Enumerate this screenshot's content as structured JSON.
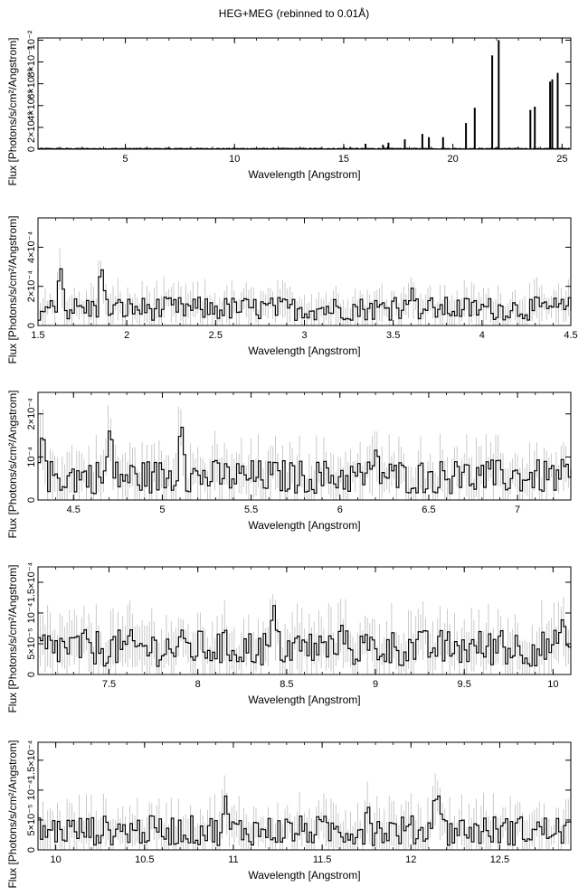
{
  "title": "HEG+MEG (rebinned to 0.01Å)",
  "chart_data": [
    {
      "type": "line",
      "xlabel": "Wavelength [Angstrom]",
      "ylabel": "Flux [Photons/s/cm²/Angstrom]",
      "xlim": [
        1.0,
        25.4
      ],
      "ylim": [
        0,
        0.0102
      ],
      "xticks": [
        5,
        10,
        15,
        20,
        25
      ],
      "xtick_labels": [
        "5",
        "10",
        "15",
        "20",
        "25"
      ],
      "yticks": [
        0,
        0.002,
        0.004,
        0.006,
        0.008,
        0.01
      ],
      "ytick_labels": [
        "0",
        "2×10⁻³",
        "4×10⁻³",
        "6×10⁻³",
        "8×10⁻³",
        "10⁻²"
      ],
      "baseline": 2e-05,
      "lines": [
        {
          "x": 15.0,
          "y": 0.0002
        },
        {
          "x": 15.3,
          "y": 0.0002
        },
        {
          "x": 16.0,
          "y": 0.0005
        },
        {
          "x": 16.8,
          "y": 0.0004
        },
        {
          "x": 17.05,
          "y": 0.0006
        },
        {
          "x": 17.8,
          "y": 0.0009
        },
        {
          "x": 18.6,
          "y": 0.0014
        },
        {
          "x": 18.9,
          "y": 0.0011
        },
        {
          "x": 19.55,
          "y": 0.0011
        },
        {
          "x": 20.6,
          "y": 0.0024
        },
        {
          "x": 21.0,
          "y": 0.0038
        },
        {
          "x": 21.8,
          "y": 0.0086
        },
        {
          "x": 22.1,
          "y": 0.01
        },
        {
          "x": 23.55,
          "y": 0.0036
        },
        {
          "x": 23.75,
          "y": 0.0039
        },
        {
          "x": 24.45,
          "y": 0.0062
        },
        {
          "x": 24.55,
          "y": 0.0064
        },
        {
          "x": 24.8,
          "y": 0.007
        }
      ]
    },
    {
      "type": "line",
      "xlabel": "Wavelength [Angstrom]",
      "ylabel": "Flux [Photons/s/cm²/Angstrom]",
      "xlim": [
        1.5,
        4.5
      ],
      "ylim": [
        0,
        0.00055
      ],
      "xticks": [
        1.5,
        2,
        2.5,
        3,
        3.5,
        4,
        4.5
      ],
      "xtick_labels": [
        "1.5",
        "2",
        "2.5",
        "3",
        "3.5",
        "4",
        "4.5"
      ],
      "yticks": [
        0,
        0.0002,
        0.0004
      ],
      "ytick_labels": [
        "0",
        "2×10⁻⁴",
        "4×10⁻⁴"
      ],
      "series_level": 8e-05,
      "noise": 6e-05,
      "features": [
        {
          "x": 1.62,
          "y": 0.00031
        },
        {
          "x": 1.85,
          "y": 0.00032
        },
        {
          "x": 3.5,
          "y": 0.00016
        },
        {
          "x": 3.6,
          "y": 0.00019
        }
      ]
    },
    {
      "type": "line",
      "xlabel": "Wavelength [Angstrom]",
      "ylabel": "Flux [Photons/s/cm²/Angstrom]",
      "xlim": [
        4.3,
        7.3
      ],
      "ylim": [
        0,
        0.00025
      ],
      "xticks": [
        4.5,
        5,
        5.5,
        6,
        6.5,
        7
      ],
      "xtick_labels": [
        "4.5",
        "5",
        "5.5",
        "6",
        "6.5",
        "7"
      ],
      "yticks": [
        0,
        0.0001,
        0.0002
      ],
      "ytick_labels": [
        "0",
        "10⁻⁴",
        "2×10⁻⁴"
      ],
      "series_level": 5e-05,
      "noise": 4e-05,
      "features": [
        {
          "x": 4.32,
          "y": 0.00017
        },
        {
          "x": 4.7,
          "y": 0.00018
        },
        {
          "x": 5.1,
          "y": 0.00019
        },
        {
          "x": 6.2,
          "y": 0.00013
        },
        {
          "x": 6.65,
          "y": 0.0001
        }
      ]
    },
    {
      "type": "line",
      "xlabel": "Wavelength [Angstrom]",
      "ylabel": "Flux [Photons/s/cm²/Angstrom]",
      "xlim": [
        7.1,
        10.1
      ],
      "ylim": [
        0,
        0.000175
      ],
      "xticks": [
        7.5,
        8,
        8.5,
        9,
        9.5,
        10
      ],
      "xtick_labels": [
        "7.5",
        "8",
        "8.5",
        "9",
        "9.5",
        "10"
      ],
      "yticks": [
        0,
        5e-05,
        0.0001,
        0.00015
      ],
      "ytick_labels": [
        "0",
        "5×10⁻⁵",
        "10⁻⁴",
        "1.5×10⁻⁴"
      ],
      "series_level": 4e-05,
      "noise": 3e-05,
      "features": [
        {
          "x": 8.42,
          "y": 0.00012
        },
        {
          "x": 8.8,
          "y": 9e-05
        },
        {
          "x": 9.7,
          "y": 8e-05
        },
        {
          "x": 10.05,
          "y": 0.0001
        }
      ]
    },
    {
      "type": "line",
      "xlabel": "Wavelength [Angstrom]",
      "ylabel": "Flux [Photons/s/cm²/Angstrom]",
      "xlim": [
        9.9,
        12.9
      ],
      "ylim": [
        0,
        0.00018
      ],
      "xticks": [
        10,
        10.5,
        11,
        11.5,
        12,
        12.5
      ],
      "xtick_labels": [
        "10",
        "10.5",
        "11",
        "11.5",
        "12",
        "12.5"
      ],
      "yticks": [
        0,
        5e-05,
        0.0001,
        0.00015
      ],
      "ytick_labels": [
        "0",
        "5×10⁻⁵",
        "10⁻⁴",
        "1.5×10⁻⁴"
      ],
      "series_level": 3e-05,
      "noise": 2.5e-05,
      "features": [
        {
          "x": 10.95,
          "y": 9e-05
        },
        {
          "x": 11.75,
          "y": 8e-05
        },
        {
          "x": 12.13,
          "y": 0.0001
        },
        {
          "x": 12.15,
          "y": 9e-05
        }
      ]
    }
  ]
}
